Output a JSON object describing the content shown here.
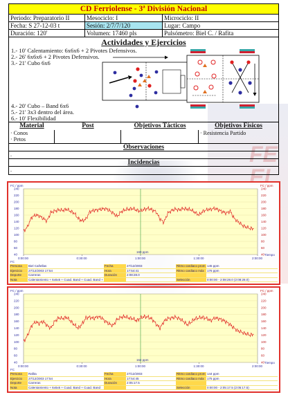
{
  "header": {
    "title": "CD Ferriolense -  3ª División Nacional",
    "row1": {
      "periodo": "Periodo: Preparatorio II",
      "mesociclo": "Mesociclo: I",
      "microciclo": "Microciclo: II"
    },
    "row2": {
      "fecha": "Fecha: S 27-12-03 t",
      "sesion": "Sesión: 2/7/7/120",
      "lugar": "Lugar: Campo"
    },
    "row3": {
      "duracion": "Duración:  120'",
      "volumen": "Volumen: 17460 pls",
      "pulsometro": "Pulsómetro:  Biel C. / Rafita"
    }
  },
  "activities": {
    "title": "Actividades y Ejercicios",
    "items": [
      "1.- 10' Calentamiento: 6x6x6 + 2 Pivotes Defensivos.",
      "2.- 26' 6x6x6 + 2 Pivotes Defensivos.",
      "3.- 21' Cubo 6x6",
      "4.- 20' Cubo – Band 6x6",
      "5.- 21' 3x3 dentro del área.",
      "6.- 10' Flexibilidad"
    ]
  },
  "material": {
    "headers": [
      "Material",
      "Post",
      "Objetivos Tácticos",
      "Objetivos Físicos"
    ],
    "material_items": [
      "· Conos",
      "· Petos"
    ],
    "fisicos": "· Resistencia Partido"
  },
  "observaciones": {
    "title": "Observaciones",
    "value": "."
  },
  "incidencias": {
    "title": "Incidencias",
    "value": "."
  },
  "watermark": {
    "text1": "FE",
    "text2": "EI"
  },
  "colors": {
    "title_bg": "#ffff00",
    "title_text": "#c00000",
    "session_bg": "#a8e4f0",
    "panel_border": "#e0302a",
    "hr_line": "#e02020",
    "plot_bg": "#ffffc8"
  },
  "chart_data": [
    {
      "type": "line",
      "ylabel": "FC / ppm",
      "ylim": [
        40,
        240
      ],
      "y_ticks": [
        40,
        60,
        80,
        100,
        120,
        140,
        160,
        180,
        200,
        220,
        240
      ],
      "y_tick_labels": [
        "40",
        "60",
        "80",
        "100",
        "120",
        "140",
        "160",
        "180",
        "200",
        "220",
        "240"
      ],
      "x_tick_labels": [
        "0:00:00",
        "0:30:00",
        "1:00:00",
        "1:30:00",
        "2:00:00"
      ],
      "xlim_minutes": [
        0,
        120
      ],
      "xlabel": "Tiempo",
      "reference_label": "169 ppm",
      "reference_minute": 60,
      "series": [
        {
          "color": "#e02020",
          "minutes": [
            0,
            2,
            4,
            6,
            8,
            10,
            12,
            14,
            16,
            18,
            20,
            22,
            24,
            26,
            28,
            30,
            32,
            34,
            36,
            38,
            40,
            42,
            44,
            46,
            48,
            50,
            52,
            54,
            56,
            58,
            60,
            62,
            64,
            66,
            68,
            70,
            72,
            74,
            76,
            78,
            80,
            82,
            84,
            86,
            88,
            90,
            92,
            94,
            96,
            98,
            100,
            102,
            104,
            106,
            108,
            110,
            112,
            114,
            116,
            118
          ],
          "values": [
            110,
            124,
            152,
            160,
            158,
            150,
            142,
            168,
            172,
            176,
            174,
            178,
            172,
            166,
            150,
            142,
            148,
            170,
            174,
            176,
            178,
            180,
            174,
            166,
            156,
            170,
            176,
            178,
            180,
            175,
            172,
            178,
            180,
            176,
            170,
            148,
            138,
            166,
            174,
            178,
            176,
            180,
            178,
            176,
            168,
            160,
            172,
            176,
            178,
            180,
            176,
            170,
            166,
            172,
            150,
            140,
            130,
            124,
            120,
            118
          ]
        }
      ]
    },
    {
      "type": "line",
      "ylabel": "FC / ppm",
      "ylim": [
        40,
        240
      ],
      "y_ticks": [
        40,
        60,
        80,
        100,
        120,
        140,
        160,
        180,
        200,
        220,
        240
      ],
      "y_tick_labels": [
        "40",
        "60",
        "80",
        "100",
        "120",
        "140",
        "160",
        "180",
        "200",
        "220",
        "240"
      ],
      "x_tick_labels": [
        "0:00:00",
        "0:30:00",
        "1:00:00",
        "1:30:00",
        "2:00:00"
      ],
      "xlim_minutes": [
        0,
        120
      ],
      "xlabel": "Tiempo",
      "reference_label": "164 ppm",
      "reference_minute": 60,
      "series": [
        {
          "color": "#e02020",
          "minutes": [
            0,
            2,
            4,
            6,
            8,
            10,
            12,
            14,
            16,
            18,
            20,
            22,
            24,
            26,
            28,
            30,
            32,
            34,
            36,
            38,
            40,
            42,
            44,
            46,
            48,
            50,
            52,
            54,
            56,
            58,
            60,
            62,
            64,
            66,
            68,
            70,
            72,
            74,
            76,
            78,
            80,
            82,
            84,
            86,
            88,
            90,
            92,
            94,
            96,
            98,
            100,
            102,
            104,
            106,
            108,
            110,
            112,
            114,
            116,
            118
          ],
          "values": [
            100,
            118,
            146,
            158,
            154,
            160,
            148,
            140,
            160,
            170,
            168,
            172,
            162,
            150,
            140,
            152,
            170,
            172,
            168,
            174,
            170,
            160,
            152,
            148,
            166,
            172,
            174,
            170,
            168,
            162,
            170,
            174,
            172,
            166,
            152,
            140,
            160,
            168,
            170,
            172,
            168,
            160,
            150,
            158,
            168,
            170,
            172,
            168,
            162,
            170,
            168,
            164,
            158,
            150,
            140,
            132,
            128,
            124,
            120,
            122
          ]
        }
      ]
    }
  ],
  "info_tables": [
    {
      "rows": [
        {
          "l1": "Persona",
          "v1": "Biel Cañellas",
          "l2": "Fecha",
          "v2": "27/12/2003",
          "l3": "Ritmo cardiaco prom",
          "v3": "145 ppm"
        },
        {
          "l1": "Ejercicio",
          "v1": "27/12/2003 17:54",
          "l2": "Hora",
          "v2": "17:54:41",
          "l3": "Ritmo cardiaco máx",
          "v3": "176 ppm"
        },
        {
          "l1": "Deporte",
          "v1": "Carreras",
          "l2": "Duración",
          "v2": "2:08:28.0",
          "l3": "",
          "v3": ""
        },
        {
          "l1": "Nota",
          "v1": "Calentamiento + 6x6x6 + Cuad. Band + Cuad. Band + 3x3",
          "l2": "",
          "v2": "",
          "l3": "Selección",
          "v3": "0:00:00 - 2:08:28.0 (2:08:28.0)"
        }
      ]
    },
    {
      "rows": [
        {
          "l1": "Persona",
          "v1": "Rafita",
          "l2": "Fecha",
          "v2": "27/12/2003",
          "l3": "Ritmo cardiaco prom",
          "v3": "144 ppm"
        },
        {
          "l1": "Ejercicio",
          "v1": "27/12/2003 17:54",
          "l2": "Hora",
          "v2": "17:54:45",
          "l3": "Ritmo cardiaco máx",
          "v3": "175 ppm"
        },
        {
          "l1": "Deporte",
          "v1": "Carreras",
          "l2": "Duración",
          "v2": "2:05:17.5",
          "l3": "",
          "v3": ""
        },
        {
          "l1": "Nota",
          "v1": "Calentamiento + 6x6x6 + Cuad. Band + Cuad. Band",
          "l2": "",
          "v2": "",
          "l3": "Selección",
          "v3": "0:00:00 - 2:05:17.5 (2:05:17.5)"
        }
      ]
    }
  ]
}
